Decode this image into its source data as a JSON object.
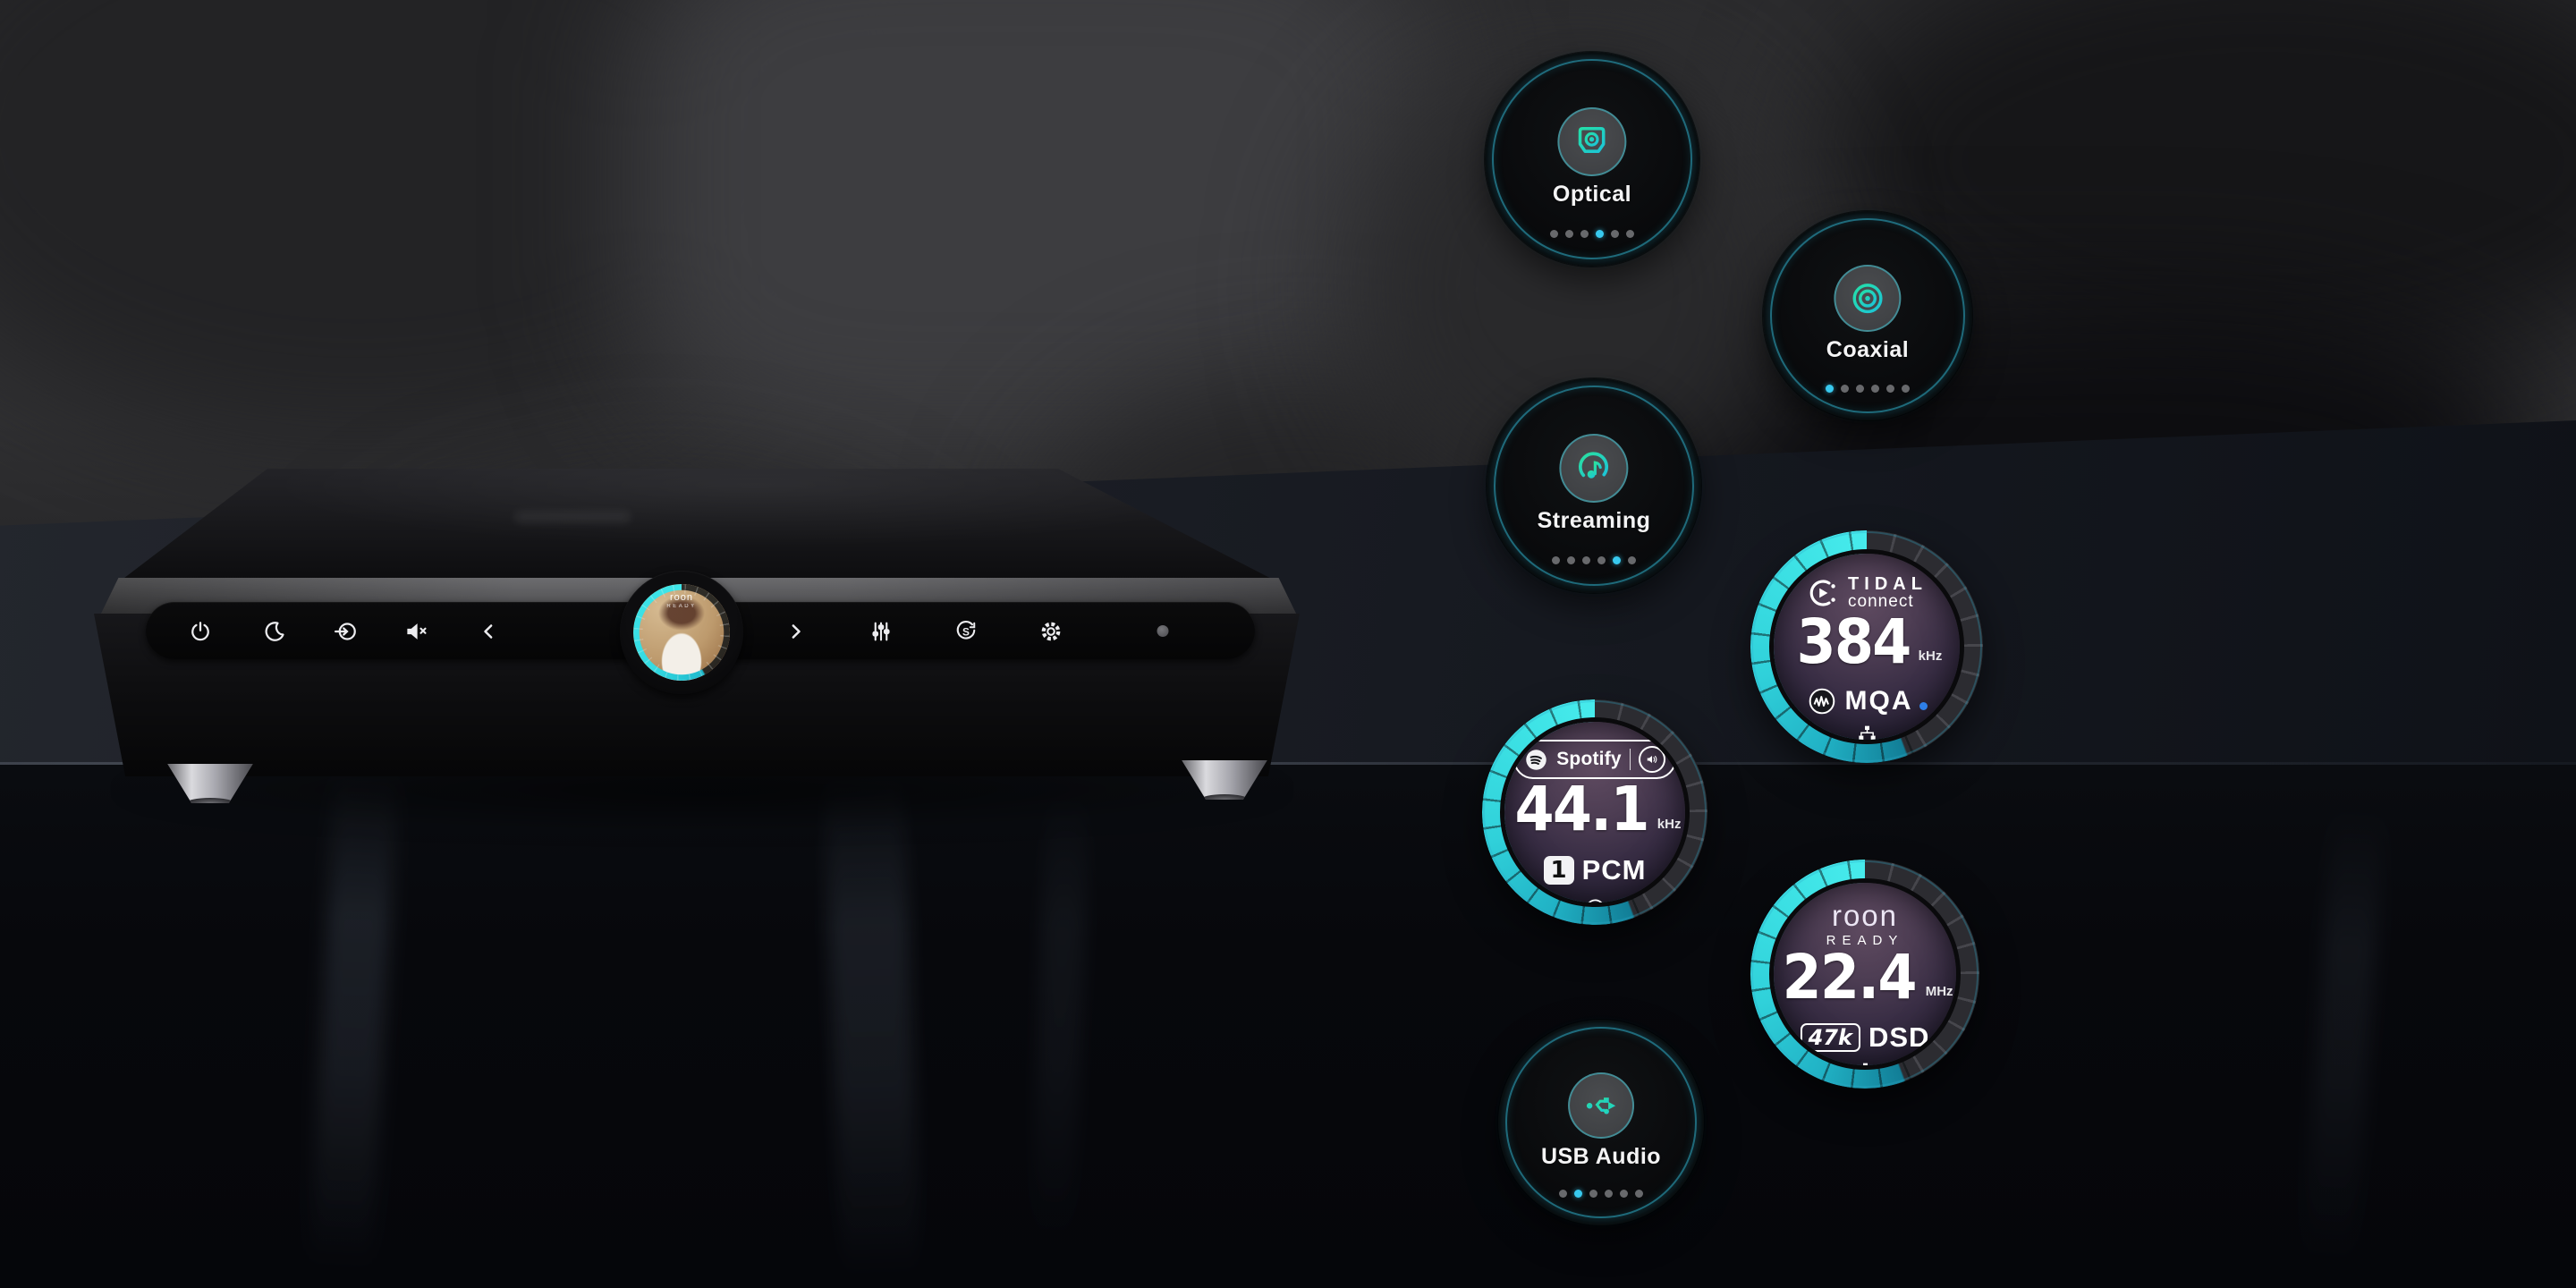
{
  "device": {
    "display": {
      "overlay_brand": "roon",
      "overlay_sub": "READY"
    },
    "src_glyph": "S",
    "buttons": [
      {
        "name": "power"
      },
      {
        "name": "night-mode"
      },
      {
        "name": "input-select"
      },
      {
        "name": "mute"
      },
      {
        "name": "previous"
      },
      {
        "name": "next"
      },
      {
        "name": "filter"
      },
      {
        "name": "src"
      },
      {
        "name": "settings"
      }
    ]
  },
  "badges": {
    "optical": {
      "label": "Optical",
      "dot_count": 6,
      "active_dot": 4
    },
    "coaxial": {
      "label": "Coaxial",
      "dot_count": 6,
      "active_dot": 1
    },
    "streaming": {
      "label": "Streaming",
      "dot_count": 6,
      "active_dot": 5
    },
    "usb_audio": {
      "label": "USB Audio",
      "dot_count": 6,
      "active_dot": 2
    },
    "tidal": {
      "brand_line1": "TIDAL",
      "brand_line2": "connect",
      "value": "384",
      "unit": "kHz",
      "codec": "MQA"
    },
    "spotify": {
      "brand": "Spotify",
      "value": "44.1",
      "unit": "kHz",
      "tag": "1",
      "codec": "PCM"
    },
    "roon": {
      "brand_line1": "roon",
      "brand_line2": "READY",
      "value": "22.4",
      "unit": "MHz",
      "tag": "47k",
      "codec": "DSD"
    }
  },
  "colors": {
    "accent_teal": "#23d9b7",
    "accent_cyan": "#36c9ee",
    "arc_cyan": "#3adde4",
    "mqa_dot_blue": "#2e7fe8",
    "screen_purple": "#46364c"
  }
}
